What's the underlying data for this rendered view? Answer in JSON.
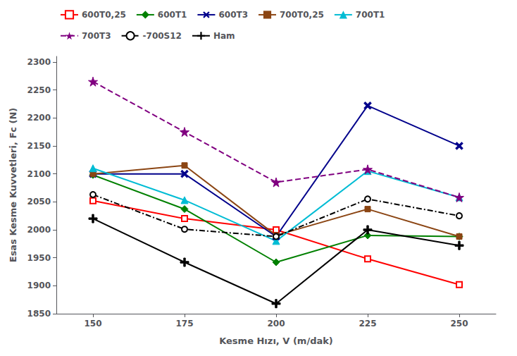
{
  "chart_data": {
    "type": "line",
    "xlabel": "Kesme Hızı, V (m/dak)",
    "ylabel": "Esas Kesme Kuvvetleri, Fc (N)",
    "x": [
      150,
      175,
      200,
      225,
      250
    ],
    "series": [
      {
        "name": "600T0,25",
        "color": "#ff0000",
        "marker": "square_open",
        "line_style": "solid",
        "values": [
          2052,
          2020,
          2000,
          1948,
          1902
        ]
      },
      {
        "name": "600T1",
        "color": "#008000",
        "marker": "diamond",
        "line_style": "solid",
        "values": [
          2098,
          2037,
          1942,
          1990,
          1988
        ]
      },
      {
        "name": "600T3",
        "color": "#00008b",
        "marker": "x",
        "line_style": "solid",
        "values": [
          2100,
          2100,
          1988,
          2222,
          2150
        ]
      },
      {
        "name": "700T0,25",
        "color": "#8b4513",
        "marker": "square",
        "line_style": "solid",
        "values": [
          2100,
          2115,
          1990,
          2037,
          1988
        ]
      },
      {
        "name": "700T1",
        "color": "#00bcd4",
        "marker": "triangle",
        "line_style": "solid",
        "values": [
          2110,
          2053,
          1980,
          2105,
          2058
        ]
      },
      {
        "name": "700T3",
        "color": "#800080",
        "marker": "star",
        "line_style": "dashed",
        "values": [
          2265,
          2175,
          2085,
          2108,
          2058
        ]
      },
      {
        "name": "-700S12",
        "color": "#000000",
        "marker": "circle_open",
        "line_style": "dashdot",
        "values": [
          2063,
          2001,
          1988,
          2055,
          2025
        ]
      },
      {
        "name": "Ham",
        "color": "#000000",
        "marker": "plus",
        "line_style": "solid",
        "values": [
          2020,
          1942,
          1868,
          2000,
          1972
        ]
      }
    ],
    "xlim": [
      140,
      260
    ],
    "xticks": [
      150,
      175,
      200,
      225,
      250
    ],
    "ylim": [
      1850,
      2310
    ],
    "yticks": [
      1850,
      1900,
      1950,
      2000,
      2050,
      2100,
      2150,
      2200,
      2250,
      2300
    ],
    "grid": false,
    "legend": "upper left"
  }
}
